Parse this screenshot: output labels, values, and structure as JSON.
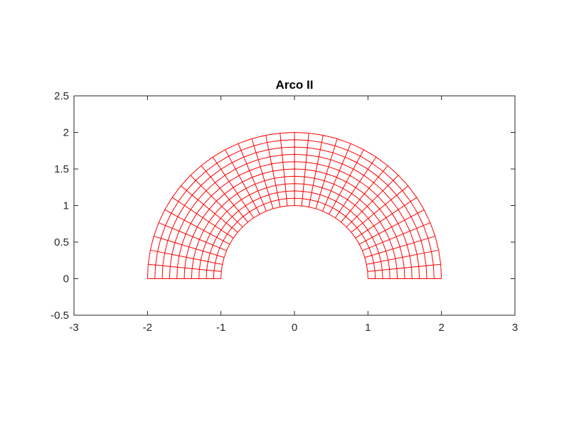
{
  "chart_data": {
    "type": "line",
    "title": "Arco II",
    "xlabel": "",
    "ylabel": "",
    "xlim": [
      -3,
      3
    ],
    "ylim": [
      -0.5,
      2.5
    ],
    "xticks": [
      "-3",
      "-2",
      "-1",
      "0",
      "1",
      "2",
      "3"
    ],
    "yticks": [
      "-0.5",
      "0",
      "0.5",
      "1",
      "1.5",
      "2",
      "2.5"
    ],
    "grid": false,
    "mesh": {
      "shape": "half-annulus",
      "inner_radius": 1,
      "outer_radius": 2,
      "angle_range_deg": [
        0,
        180
      ],
      "radial_divisions": 10,
      "angular_divisions": 32,
      "color": "#ff0000"
    }
  }
}
